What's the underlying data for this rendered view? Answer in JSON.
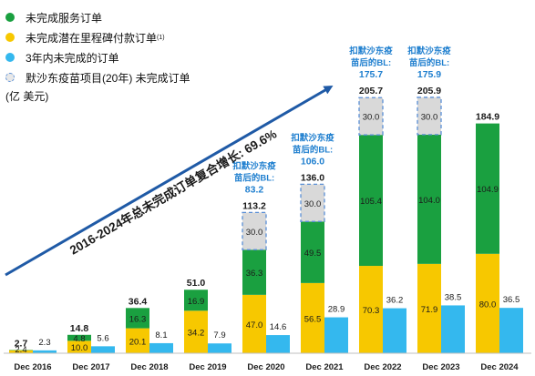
{
  "legend": {
    "items": [
      {
        "label": "未完成服务订单",
        "color": "#1aa040"
      },
      {
        "label": "未完成潜在里程碑付款订单",
        "sup": "(1)",
        "color": "#f7c800"
      },
      {
        "label": "3年内未完成的订单",
        "color": "#34b8ee"
      },
      {
        "label": "默沙东疫苗项目(20年) 未完成订单",
        "color": "#d9d9d9"
      }
    ],
    "unit": "(亿  美元)"
  },
  "growth_arrow_text": "2016-2024年总未完成订单复合增长: 69.6%",
  "colors": {
    "green": "#1aa040",
    "yellow": "#f7c800",
    "blue": "#34b8ee",
    "grey": "#d9d9d9",
    "arrow": "#1f5aa6",
    "annotation": "#1f7fcf",
    "dashed_border": "#5a8fd6"
  },
  "chart_data": {
    "type": "bar",
    "categories": [
      "Dec 2016",
      "Dec 2017",
      "Dec 2018",
      "Dec 2019",
      "Dec 2020",
      "Dec 2021",
      "Dec 2022",
      "Dec 2023",
      "Dec 2024"
    ],
    "series": [
      {
        "name": "未完成潜在里程碑付款订单",
        "values": [
          2.4,
          10.0,
          20.1,
          34.2,
          47.0,
          56.5,
          70.3,
          71.9,
          80.0
        ]
      },
      {
        "name": "未完成服务订单",
        "values": [
          0.3,
          4.8,
          16.3,
          16.9,
          36.3,
          49.5,
          105.4,
          104.0,
          104.9
        ]
      },
      {
        "name": "默沙东疫苗项目(20年) 未完成订单",
        "values": [
          0,
          0,
          0,
          0,
          30.0,
          30.0,
          30.0,
          30.0,
          0
        ]
      },
      {
        "name": "3年内未完成的订单",
        "values": [
          2.3,
          5.6,
          8.1,
          7.9,
          14.6,
          28.9,
          36.2,
          38.5,
          36.5
        ]
      }
    ],
    "totals": [
      "2.7",
      "14.8",
      "36.4",
      "51.0",
      "113.2",
      "136.0",
      "205.7",
      "205.9",
      "184.9"
    ],
    "segment_labels": {
      "yellow": [
        "2.4",
        "10.0",
        "20.1",
        "34.2",
        "47.0",
        "56.5",
        "70.3",
        "71.9",
        "80.0"
      ],
      "green": [
        "",
        "4.8",
        "16.3",
        "16.9",
        "36.3",
        "49.5",
        "105.4",
        "104.0",
        "104.9"
      ],
      "grey": [
        "",
        "",
        "",
        "",
        "30.0",
        "30.0",
        "30.0",
        "30.0",
        ""
      ],
      "blue": [
        "2.3",
        "5.6",
        "8.1",
        "7.9",
        "14.6",
        "28.9",
        "36.2",
        "38.5",
        "36.5"
      ]
    },
    "excl_annotations": [
      {
        "index": 4,
        "label": "扣默沙东疫\n苗后的BL:",
        "value": "83.2"
      },
      {
        "index": 5,
        "label": "扣默沙东疫\n苗后的BL:",
        "value": "106.0"
      },
      {
        "index": 6,
        "label": "扣默沙东疫\n苗后的BL:",
        "value": "175.7"
      },
      {
        "index": 7,
        "label": "扣默沙东疫\n苗后的BL:",
        "value": "175.9"
      }
    ],
    "title": "",
    "xlabel": "",
    "ylabel": ""
  }
}
